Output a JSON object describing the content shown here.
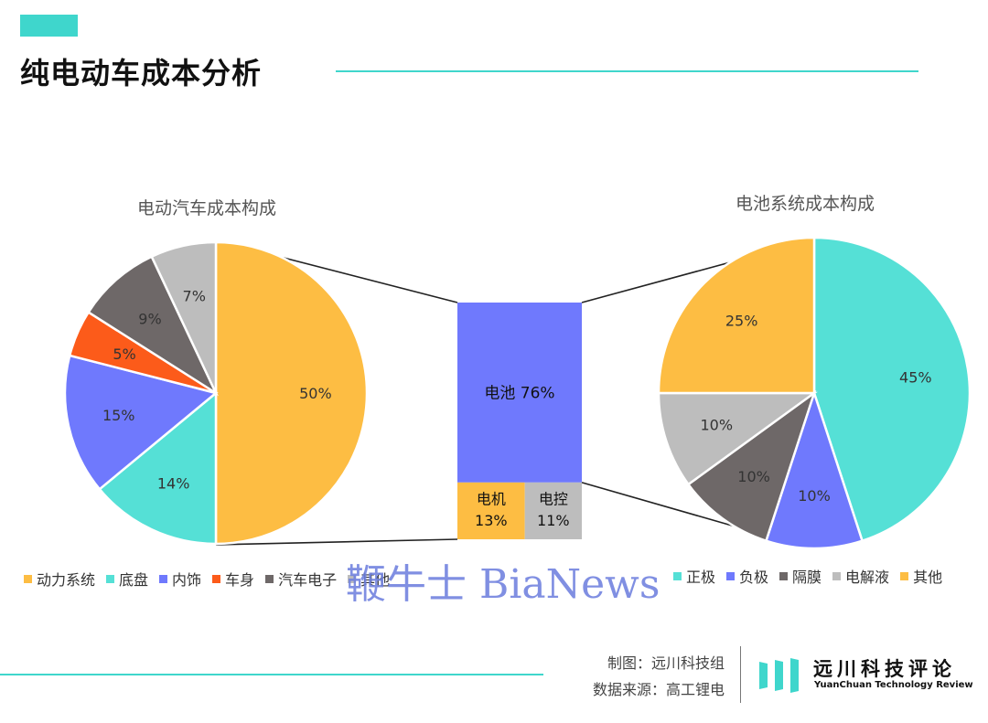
{
  "page_title": "纯电动车成本分析",
  "watermark": "鞭牛士 BiaNews",
  "credit": {
    "line1": "制图：远川科技组",
    "line2": "数据来源：高工锂电"
  },
  "logo": {
    "name_cn": "远川科技评论",
    "name_en": "YuanChuan Technology Review"
  },
  "colors": {
    "accent": "#3fd6cc"
  },
  "chart_data": [
    {
      "type": "pie",
      "title": "电动汽车成本构成",
      "legend_placement": "bottom",
      "slices": [
        {
          "name": "动力系统",
          "value": 50,
          "label": "50%",
          "color": "#fdbd43"
        },
        {
          "name": "底盘",
          "value": 14,
          "label": "14%",
          "color": "#55e0d6"
        },
        {
          "name": "内饰",
          "value": 15,
          "label": "15%",
          "color": "#6f79fd"
        },
        {
          "name": "车身",
          "value": 5,
          "label": "5%",
          "color": "#fc5b1a"
        },
        {
          "name": "汽车电子",
          "value": 9,
          "label": "9%",
          "color": "#6e6868"
        },
        {
          "name": "其他",
          "value": 7,
          "label": "7%",
          "color": "#bdbdbd"
        }
      ],
      "legend": [
        "动力系统",
        "底盘",
        "内饰",
        "车身",
        "汽车电子",
        "其他"
      ]
    },
    {
      "type": "bar",
      "title": "",
      "segments": [
        {
          "name": "电池",
          "value": 76,
          "label": "电池 76%",
          "color": "#6f79fd"
        },
        {
          "name": "电机",
          "value": 13,
          "label": "13%",
          "color": "#fdbd43"
        },
        {
          "name": "电控",
          "value": 11,
          "label": "11%",
          "color": "#bdbdbd"
        }
      ]
    },
    {
      "type": "pie",
      "title": "电池系统成本构成",
      "legend_placement": "bottom",
      "slices": [
        {
          "name": "正极",
          "value": 45,
          "label": "45%",
          "color": "#55e0d6"
        },
        {
          "name": "负极",
          "value": 10,
          "label": "10%",
          "color": "#6f79fd"
        },
        {
          "name": "隔膜",
          "value": 10,
          "label": "10%",
          "color": "#6e6868"
        },
        {
          "name": "电解液",
          "value": 10,
          "label": "10%",
          "color": "#bdbdbd"
        },
        {
          "name": "其他",
          "value": 25,
          "label": "25%",
          "color": "#fdbd43"
        }
      ],
      "legend": [
        "正极",
        "负极",
        "隔膜",
        "电解液",
        "其他"
      ]
    }
  ]
}
